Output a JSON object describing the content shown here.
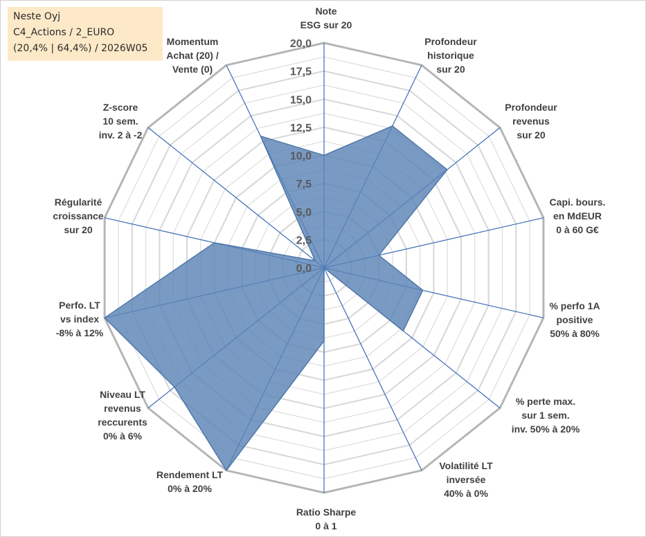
{
  "info": {
    "line1": "Neste Oyj",
    "line2": "C4_Actions / 2_EURO",
    "line3": "(20,4% | 64,4%) / 2026W05"
  },
  "chart_data": {
    "type": "radar",
    "title": "",
    "rmin": 0,
    "rmax": 20,
    "ticks": [
      "0,0",
      "2,5",
      "5,0",
      "7,5",
      "10,0",
      "12,5",
      "15,0",
      "17,5",
      "20,0"
    ],
    "tick_values": [
      0,
      2.5,
      5,
      7.5,
      10,
      12.5,
      15,
      17.5,
      20
    ],
    "axes": [
      {
        "label": [
          "Note",
          "ESG sur 20"
        ],
        "value": 10.0
      },
      {
        "label": [
          "Profondeur",
          "historique",
          "sur 20"
        ],
        "value": 14.0
      },
      {
        "label": [
          "Profondeur",
          "revenus",
          "sur 20"
        ],
        "value": 14.0
      },
      {
        "label": [
          "Capi. bours.",
          "en MdEUR",
          "0 à 60 G€"
        ],
        "value": 5.0
      },
      {
        "label": [
          "% perfo 1A",
          "positive",
          "50% à 80%"
        ],
        "value": 9.0
      },
      {
        "label": [
          "% perte max.",
          "sur 1 sem.",
          "inv. 50% à 20%"
        ],
        "value": 9.0
      },
      {
        "label": [
          "Volatilité LT",
          "inversée",
          "40% à 0%"
        ],
        "value": 0.0
      },
      {
        "label": [
          "Ratio Sharpe",
          "0 à 1"
        ],
        "value": 6.5
      },
      {
        "label": [
          "Rendement LT",
          "0% à 20%"
        ],
        "value": 20.0
      },
      {
        "label": [
          "Niveau LT",
          "revenus",
          "reccurents",
          "0% à 6%"
        ],
        "value": 17.0
      },
      {
        "label": [
          "Perfo. LT",
          "vs index",
          "-8% à 12%"
        ],
        "value": 20.0
      },
      {
        "label": [
          "Régularité",
          "croissance",
          "sur 20"
        ],
        "value": 10.0
      },
      {
        "label": [
          "Z-score",
          "10 sem.",
          "inv. 2 à -2"
        ],
        "value": 1.0
      },
      {
        "label": [
          "Momentum",
          "Achat (20) /",
          "Vente (0)"
        ],
        "value": 13.0
      }
    ],
    "colors": {
      "fill": "#5b84b6",
      "stroke": "#4f77a8",
      "grid": "#c0c0c0",
      "spoke": "#3a6ab7"
    }
  }
}
